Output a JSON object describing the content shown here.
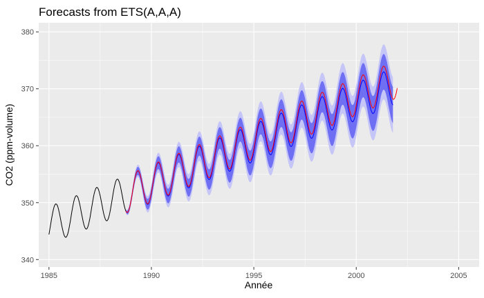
{
  "chart_data": {
    "type": "line",
    "title": "Forecasts from ETS(A,A,A)",
    "xlabel": "Année",
    "ylabel": "CO2 (ppm-volume)",
    "xlim": [
      1984.5,
      2006.0
    ],
    "ylim": [
      338.7,
      381.6
    ],
    "x_ticks": [
      1985,
      1990,
      1995,
      2000,
      2005
    ],
    "y_ticks": [
      340,
      350,
      360,
      370,
      380
    ],
    "grid": true,
    "legend": "none",
    "colors": {
      "panel": "#ebebeb",
      "grid_major": "#ffffff",
      "observed": "#000000",
      "forecast": "#0000ff",
      "actual": "#ff0000",
      "band80": "#6f6ff4",
      "band95": "#c5c5f8"
    },
    "model": {
      "start_year": 1985.0,
      "forecast_origin": 1988.75,
      "forecast_end": 2001.83,
      "actual_end": 2002.0,
      "base_level": 346.0,
      "trend_per_year": 1.45,
      "seasonal_amplitude": 3.3,
      "seasonal_peak_fraction": 0.33,
      "actual_bias": 0.8,
      "pi80_growth_per_year": 0.55,
      "pi95_growth_per_year": 0.85
    },
    "series": [
      {
        "role": "observed",
        "x_range": [
          1985.0,
          1988.75
        ]
      },
      {
        "role": "forecast",
        "x_range": [
          1988.75,
          2001.83
        ]
      },
      {
        "role": "actual",
        "x_range": [
          1988.75,
          2002.0
        ]
      },
      {
        "role": "pi80",
        "x_range": [
          1988.75,
          2001.83
        ]
      },
      {
        "role": "pi95",
        "x_range": [
          1988.75,
          2001.83
        ]
      }
    ]
  }
}
